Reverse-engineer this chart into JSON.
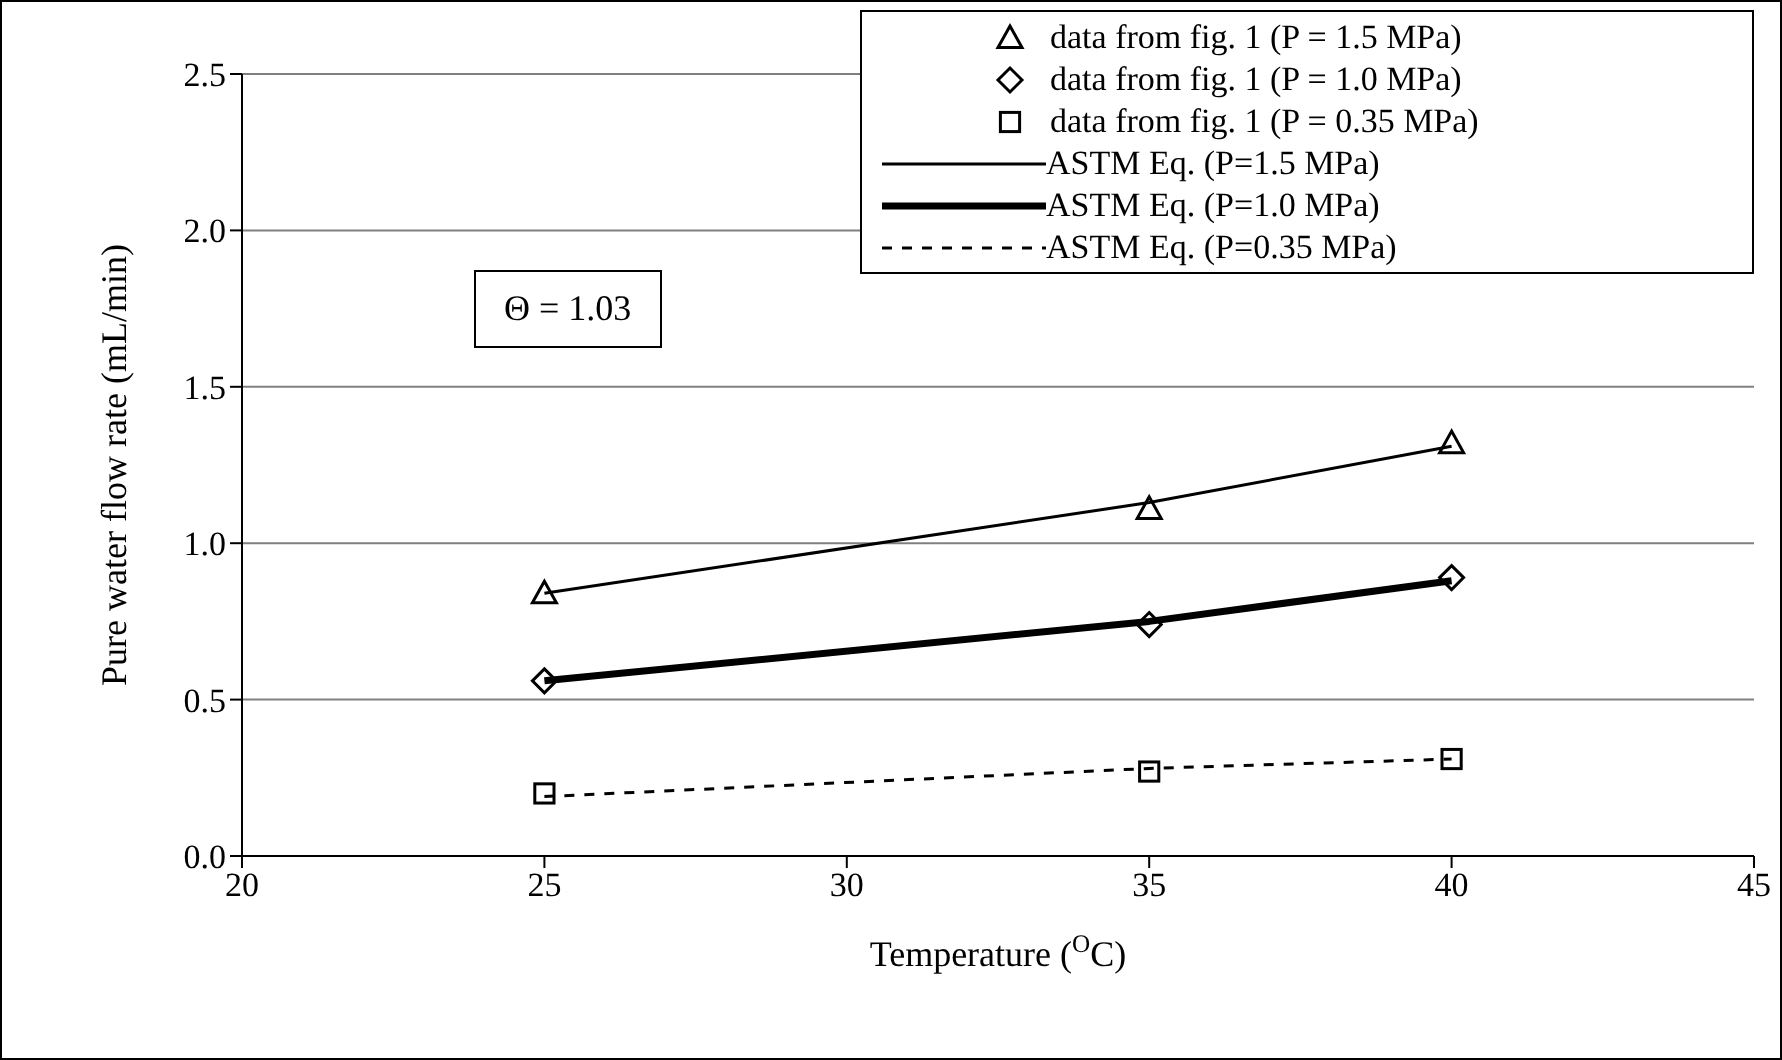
{
  "chart_data": {
    "type": "line",
    "xlabel": "Temperature ($^{O}$C)",
    "ylabel": "Pure water flow rate (mL/min)",
    "xlim": [
      20,
      45
    ],
    "xticks": [
      20,
      25,
      30,
      35,
      40,
      45
    ],
    "ylim": [
      0,
      2.5
    ],
    "yticks": [
      {
        "value": 0,
        "label": "0.0"
      },
      {
        "value": 0.5,
        "label": "0.5"
      },
      {
        "value": 1,
        "label": "1.0"
      },
      {
        "value": 1.5,
        "label": "1.5"
      },
      {
        "value": 2,
        "label": "2.0"
      },
      {
        "value": 2.5,
        "label": "2.5"
      }
    ],
    "grid": "y",
    "legend": "top right",
    "annotations": [
      "Θ = 1.03"
    ],
    "series": [
      {
        "name": "data from fig. 1 (P = 1.5 MPa)",
        "type": "scatter",
        "marker": "triangle",
        "color": "#000000",
        "x": [
          25,
          35,
          40
        ],
        "values": [
          0.84,
          1.11,
          1.32
        ]
      },
      {
        "name": "data from fig. 1 (P = 1.0 MPa)",
        "type": "scatter",
        "marker": "diamond",
        "color": "#000000",
        "x": [
          25,
          35,
          40
        ],
        "values": [
          0.56,
          0.74,
          0.89
        ]
      },
      {
        "name": "data from fig. 1 (P = 0.35 MPa)",
        "type": "scatter",
        "marker": "square",
        "color": "#000000",
        "x": [
          25,
          35,
          40
        ],
        "values": [
          0.2,
          0.27,
          0.31
        ]
      },
      {
        "name": "ASTM Eq. (P=1.5 MPa)",
        "line_style": "solid",
        "color": "#000000",
        "x": [
          25,
          35,
          40
        ],
        "values": [
          0.84,
          1.13,
          1.31
        ]
      },
      {
        "name": "ASTM Eq. (P=1.0 MPa)",
        "line_style": "solid",
        "color": "#000000",
        "x": [
          25,
          35,
          40
        ],
        "values": [
          0.56,
          0.75,
          0.88
        ]
      },
      {
        "name": "ASTM Eq. (P=0.35 MPa)",
        "line_style": "dashed",
        "color": "#000000",
        "x": [
          25,
          35,
          40
        ],
        "values": [
          0.19,
          0.28,
          0.31
        ]
      }
    ]
  }
}
